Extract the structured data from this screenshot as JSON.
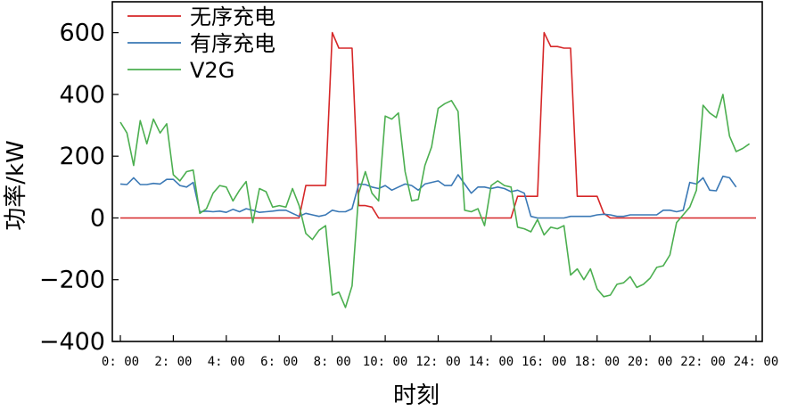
{
  "chart_data": {
    "type": "line",
    "title": "",
    "xlabel": "时刻",
    "ylabel": "功率/kW",
    "xlim": [
      0,
      96
    ],
    "ylim": [
      -400,
      700
    ],
    "grid": false,
    "legend_position": "top-left",
    "x_tick_positions": [
      0,
      8,
      16,
      24,
      32,
      40,
      48,
      56,
      64,
      72,
      80,
      88,
      96
    ],
    "x_tick_labels": [
      "0: 00",
      "2: 00",
      "4: 00",
      "6: 00",
      "8: 00",
      "10: 00",
      "12: 00",
      "14: 00",
      "16: 00",
      "18: 00",
      "20: 00",
      "22: 00",
      "24: 00"
    ],
    "y_ticks": [
      -400,
      -200,
      0,
      200,
      400,
      600
    ],
    "y_tick_labels": [
      "−400",
      "−200",
      "0",
      "200",
      "400",
      "600"
    ],
    "series": [
      {
        "name": "无序充电",
        "color": "#d62728",
        "points": [
          [
            0,
            0
          ],
          [
            26,
            0
          ],
          [
            27,
            0
          ],
          [
            28,
            105
          ],
          [
            30,
            105
          ],
          [
            31,
            105
          ],
          [
            32,
            600
          ],
          [
            33,
            550
          ],
          [
            34,
            550
          ],
          [
            35,
            550
          ],
          [
            36,
            40
          ],
          [
            37,
            40
          ],
          [
            38,
            35
          ],
          [
            39,
            0
          ],
          [
            58,
            0
          ],
          [
            59,
            0
          ],
          [
            60,
            70
          ],
          [
            63,
            70
          ],
          [
            64,
            600
          ],
          [
            65,
            555
          ],
          [
            66,
            555
          ],
          [
            67,
            550
          ],
          [
            68,
            550
          ],
          [
            69,
            70
          ],
          [
            70,
            70
          ],
          [
            71,
            70
          ],
          [
            72,
            70
          ],
          [
            73,
            15
          ],
          [
            74,
            0
          ],
          [
            96,
            0
          ]
        ]
      },
      {
        "name": "有序充电",
        "color": "#3a78b5",
        "points": [
          [
            0,
            110
          ],
          [
            1,
            108
          ],
          [
            2,
            130
          ],
          [
            3,
            108
          ],
          [
            4,
            108
          ],
          [
            5,
            112
          ],
          [
            6,
            110
          ],
          [
            7,
            125
          ],
          [
            8,
            125
          ],
          [
            9,
            105
          ],
          [
            10,
            100
          ],
          [
            11,
            115
          ],
          [
            12,
            20
          ],
          [
            13,
            22
          ],
          [
            14,
            20
          ],
          [
            15,
            22
          ],
          [
            16,
            18
          ],
          [
            17,
            28
          ],
          [
            18,
            20
          ],
          [
            19,
            30
          ],
          [
            20,
            25
          ],
          [
            21,
            18
          ],
          [
            22,
            20
          ],
          [
            23,
            22
          ],
          [
            24,
            25
          ],
          [
            25,
            25
          ],
          [
            26,
            15
          ],
          [
            27,
            5
          ],
          [
            28,
            15
          ],
          [
            29,
            10
          ],
          [
            30,
            5
          ],
          [
            31,
            10
          ],
          [
            32,
            25
          ],
          [
            33,
            20
          ],
          [
            34,
            20
          ],
          [
            35,
            30
          ],
          [
            36,
            110
          ],
          [
            37,
            108
          ],
          [
            38,
            100
          ],
          [
            39,
            95
          ],
          [
            40,
            105
          ],
          [
            41,
            90
          ],
          [
            42,
            100
          ],
          [
            43,
            110
          ],
          [
            44,
            105
          ],
          [
            45,
            90
          ],
          [
            46,
            110
          ],
          [
            47,
            115
          ],
          [
            48,
            120
          ],
          [
            49,
            105
          ],
          [
            50,
            105
          ],
          [
            51,
            140
          ],
          [
            52,
            110
          ],
          [
            53,
            80
          ],
          [
            54,
            100
          ],
          [
            55,
            100
          ],
          [
            56,
            95
          ],
          [
            57,
            100
          ],
          [
            58,
            95
          ],
          [
            59,
            85
          ],
          [
            60,
            90
          ],
          [
            61,
            80
          ],
          [
            62,
            5
          ],
          [
            63,
            0
          ],
          [
            64,
            0
          ],
          [
            65,
            0
          ],
          [
            66,
            0
          ],
          [
            67,
            0
          ],
          [
            68,
            5
          ],
          [
            69,
            5
          ],
          [
            70,
            5
          ],
          [
            71,
            5
          ],
          [
            72,
            10
          ],
          [
            73,
            12
          ],
          [
            74,
            10
          ],
          [
            75,
            5
          ],
          [
            76,
            5
          ],
          [
            77,
            10
          ],
          [
            78,
            10
          ],
          [
            79,
            10
          ],
          [
            80,
            10
          ],
          [
            81,
            10
          ],
          [
            82,
            25
          ],
          [
            83,
            25
          ],
          [
            84,
            20
          ],
          [
            85,
            25
          ],
          [
            86,
            115
          ],
          [
            87,
            110
          ],
          [
            88,
            130
          ],
          [
            89,
            90
          ],
          [
            90,
            88
          ],
          [
            91,
            135
          ],
          [
            92,
            130
          ],
          [
            93,
            100
          ]
        ]
      },
      {
        "name": "V2G",
        "color": "#4caf50",
        "points": [
          [
            0,
            310
          ],
          [
            1,
            275
          ],
          [
            2,
            170
          ],
          [
            3,
            315
          ],
          [
            4,
            240
          ],
          [
            5,
            320
          ],
          [
            6,
            275
          ],
          [
            7,
            305
          ],
          [
            8,
            140
          ],
          [
            9,
            120
          ],
          [
            10,
            150
          ],
          [
            11,
            155
          ],
          [
            12,
            15
          ],
          [
            13,
            30
          ],
          [
            14,
            80
          ],
          [
            15,
            105
          ],
          [
            16,
            100
          ],
          [
            17,
            55
          ],
          [
            18,
            90
          ],
          [
            19,
            118
          ],
          [
            20,
            -15
          ],
          [
            21,
            95
          ],
          [
            22,
            85
          ],
          [
            23,
            35
          ],
          [
            24,
            40
          ],
          [
            25,
            35
          ],
          [
            26,
            95
          ],
          [
            27,
            40
          ],
          [
            28,
            -50
          ],
          [
            29,
            -70
          ],
          [
            30,
            -40
          ],
          [
            31,
            -25
          ],
          [
            32,
            -250
          ],
          [
            33,
            -240
          ],
          [
            34,
            -290
          ],
          [
            35,
            -220
          ],
          [
            36,
            80
          ],
          [
            37,
            150
          ],
          [
            38,
            80
          ],
          [
            39,
            55
          ],
          [
            40,
            330
          ],
          [
            41,
            320
          ],
          [
            42,
            340
          ],
          [
            43,
            150
          ],
          [
            44,
            55
          ],
          [
            45,
            60
          ],
          [
            46,
            170
          ],
          [
            47,
            230
          ],
          [
            48,
            355
          ],
          [
            49,
            370
          ],
          [
            50,
            380
          ],
          [
            51,
            345
          ],
          [
            52,
            25
          ],
          [
            53,
            20
          ],
          [
            54,
            30
          ],
          [
            55,
            -25
          ],
          [
            56,
            105
          ],
          [
            57,
            120
          ],
          [
            58,
            105
          ],
          [
            59,
            100
          ],
          [
            60,
            -30
          ],
          [
            61,
            -35
          ],
          [
            62,
            -45
          ],
          [
            63,
            -5
          ],
          [
            64,
            -55
          ],
          [
            65,
            -30
          ],
          [
            66,
            -35
          ],
          [
            67,
            -25
          ],
          [
            68,
            -185
          ],
          [
            69,
            -165
          ],
          [
            70,
            -200
          ],
          [
            71,
            -165
          ],
          [
            72,
            -230
          ],
          [
            73,
            -255
          ],
          [
            74,
            -250
          ],
          [
            75,
            -215
          ],
          [
            76,
            -210
          ],
          [
            77,
            -190
          ],
          [
            78,
            -225
          ],
          [
            79,
            -215
          ],
          [
            80,
            -195
          ],
          [
            81,
            -160
          ],
          [
            82,
            -155
          ],
          [
            83,
            -120
          ],
          [
            84,
            -15
          ],
          [
            85,
            10
          ],
          [
            86,
            35
          ],
          [
            87,
            90
          ],
          [
            88,
            365
          ],
          [
            89,
            340
          ],
          [
            90,
            325
          ],
          [
            91,
            400
          ],
          [
            92,
            265
          ],
          [
            93,
            215
          ],
          [
            94,
            225
          ],
          [
            95,
            240
          ]
        ]
      }
    ]
  }
}
